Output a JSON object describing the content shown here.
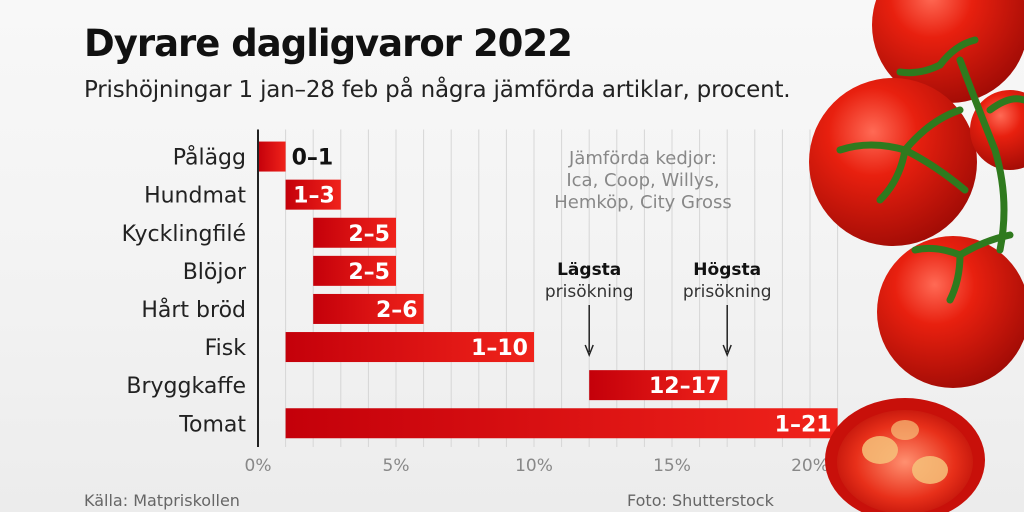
{
  "title": "Dyrare dagligvaror 2022",
  "subtitle": "Prishöjningar 1 jan–28 feb på några jämförda artiklar, procent.",
  "footer": {
    "source": "Källa: Matpriskollen",
    "photo": "Foto: Shutterstock"
  },
  "colors": {
    "bar_dark": "#c4000a",
    "bar_light": "#f0231b",
    "grid": "#d6d6d6",
    "axis": "#222222",
    "tomato": "#d8140e"
  },
  "chart_data": {
    "type": "bar",
    "orientation": "horizontal",
    "range_bars": true,
    "categories": [
      "Pålägg",
      "Hundmat",
      "Kycklingfilé",
      "Blöjor",
      "Hårt bröd",
      "Fisk",
      "Bryggkaffe",
      "Tomat"
    ],
    "ranges": [
      [
        0,
        1
      ],
      [
        1,
        3
      ],
      [
        2,
        5
      ],
      [
        2,
        5
      ],
      [
        2,
        6
      ],
      [
        1,
        10
      ],
      [
        12,
        17
      ],
      [
        1,
        21
      ]
    ],
    "labels": [
      "0–1",
      "1–3",
      "2–5",
      "2–5",
      "2–6",
      "1–10",
      "12–17",
      "1–21"
    ],
    "xlim": [
      0,
      21
    ],
    "xticks": [
      0,
      5,
      10,
      15,
      20
    ],
    "xtick_labels": [
      "0%",
      "5%",
      "10%",
      "15%",
      "20%"
    ],
    "grid": "vertical",
    "annotations": {
      "kedjor": [
        "Jämförda kedjor:",
        "Ica, Coop, Willys,",
        "Hemköp, City Gross"
      ],
      "lowest": {
        "bold": "Lägsta",
        "text": "prisökning",
        "x": 12
      },
      "highest": {
        "bold": "Högsta",
        "text": "prisökning",
        "x": 17
      }
    }
  }
}
